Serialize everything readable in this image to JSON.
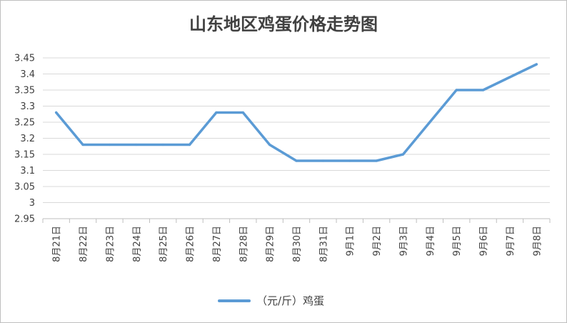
{
  "chart_data": {
    "type": "line",
    "title": "山东地区鸡蛋价格走势图",
    "categories": [
      "8月21日",
      "8月22日",
      "8月23日",
      "8月24日",
      "8月25日",
      "8月26日",
      "8月27日",
      "8月28日",
      "8月29日",
      "8月30日",
      "8月31日",
      "9月1日",
      "9月2日",
      "9月3日",
      "9月4日",
      "9月5日",
      "9月6日",
      "9月7日",
      "9月8日"
    ],
    "series": [
      {
        "name": "（元/斤）鸡蛋",
        "color": "#5b9bd5",
        "values": [
          3.28,
          3.18,
          3.18,
          3.18,
          3.18,
          3.18,
          3.28,
          3.28,
          3.18,
          3.13,
          3.13,
          3.13,
          3.13,
          3.15,
          3.25,
          3.35,
          3.35,
          3.39,
          3.43
        ]
      }
    ],
    "ylim": [
      2.95,
      3.45
    ],
    "yticks": [
      "2.95",
      "3",
      "3.05",
      "3.1",
      "3.15",
      "3.2",
      "3.25",
      "3.3",
      "3.35",
      "3.4",
      "3.45"
    ],
    "grid": true,
    "legend": "bottom"
  }
}
